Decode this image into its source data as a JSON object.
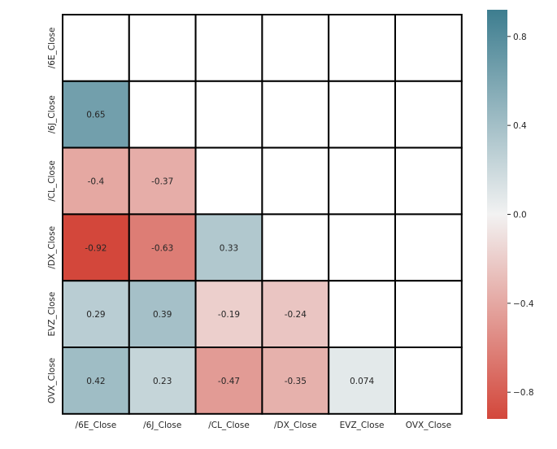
{
  "chart_data": {
    "type": "heatmap",
    "title": "",
    "xlabel": "",
    "ylabel": "",
    "x_labels": [
      "/6E_Close",
      "/6J_Close",
      "/CL_Close",
      "/DX_Close",
      "EVZ_Close",
      "OVX_Close"
    ],
    "y_labels": [
      "/6E_Close",
      "/6J_Close",
      "/CL_Close",
      "/DX_Close",
      "EVZ_Close",
      "OVX_Close"
    ],
    "mask": "upper-triangle-and-diagonal",
    "matrix": [
      [
        null,
        null,
        null,
        null,
        null,
        null
      ],
      [
        0.65,
        null,
        null,
        null,
        null,
        null
      ],
      [
        -0.4,
        -0.37,
        null,
        null,
        null,
        null
      ],
      [
        -0.92,
        -0.63,
        0.33,
        null,
        null,
        null
      ],
      [
        0.29,
        0.39,
        -0.19,
        -0.24,
        null,
        null
      ],
      [
        0.42,
        0.23,
        -0.47,
        -0.35,
        0.074,
        null
      ]
    ],
    "value_labels": [
      [
        null,
        null,
        null,
        null,
        null,
        null
      ],
      [
        "0.65",
        null,
        null,
        null,
        null,
        null
      ],
      [
        "-0.4",
        "-0.37",
        null,
        null,
        null,
        null
      ],
      [
        "-0.92",
        "-0.63",
        "0.33",
        null,
        null,
        null
      ],
      [
        "0.29",
        "0.39",
        "-0.19",
        "-0.24",
        null,
        null
      ],
      [
        "0.42",
        "0.23",
        "-0.47",
        "-0.35",
        "0.074",
        null
      ]
    ],
    "colorbar": {
      "vmin": -0.92,
      "vmax": 0.92,
      "ticks": [
        0.8,
        0.4,
        0.0,
        -0.4,
        -0.8
      ],
      "tick_labels": [
        "0.8",
        "0.4",
        "0.0",
        "−0.4",
        "−0.8"
      ],
      "neg_color": "#d3473b",
      "mid_color": "#f2f2f2",
      "pos_color": "#3d7d8f"
    },
    "grid": false,
    "cell_border_color": "#000000",
    "empty_cell_color": "#ffffff",
    "legend": "colorbar-right"
  }
}
